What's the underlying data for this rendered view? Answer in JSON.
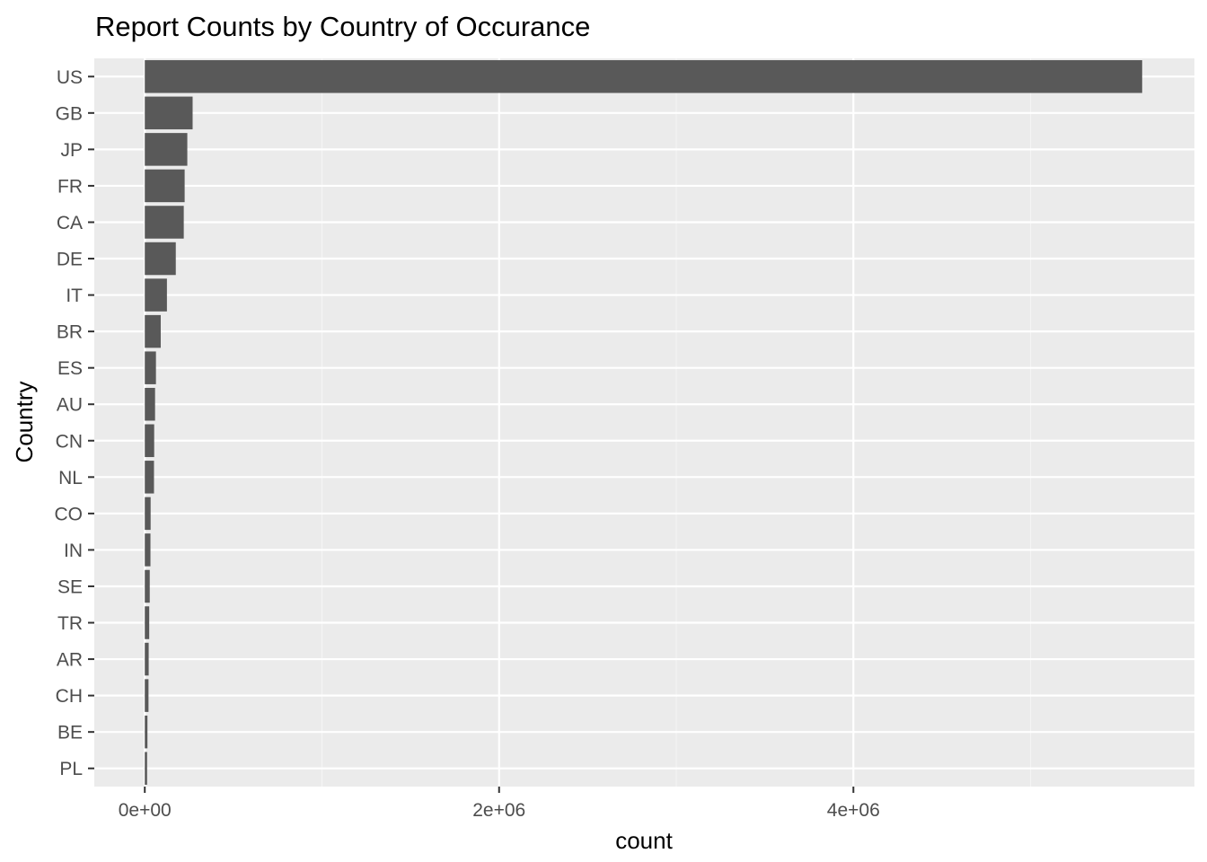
{
  "chart_data": {
    "type": "bar",
    "orientation": "horizontal",
    "title": "Report Counts by Country of Occurance",
    "xlabel": "count",
    "ylabel": "Country",
    "categories": [
      "US",
      "GB",
      "JP",
      "FR",
      "CA",
      "DE",
      "IT",
      "BR",
      "ES",
      "AU",
      "CN",
      "NL",
      "CO",
      "IN",
      "SE",
      "TR",
      "AR",
      "CH",
      "BE",
      "PL"
    ],
    "values": [
      5630000,
      270000,
      240000,
      225000,
      220000,
      175000,
      125000,
      90000,
      63000,
      58000,
      53000,
      52000,
      33000,
      32000,
      28000,
      25000,
      22000,
      21000,
      15000,
      13000
    ],
    "x_ticks": [
      0,
      2000000,
      4000000
    ],
    "x_tick_labels": [
      "0e+00",
      "2e+06",
      "4e+06"
    ],
    "xlim": [
      -285000,
      5925000
    ],
    "grid": true,
    "legend": "none",
    "colors": {
      "bar": "#595959",
      "panel": "#ebebeb",
      "grid_major": "#ffffff",
      "grid_minor": "#f4f4f4"
    }
  }
}
